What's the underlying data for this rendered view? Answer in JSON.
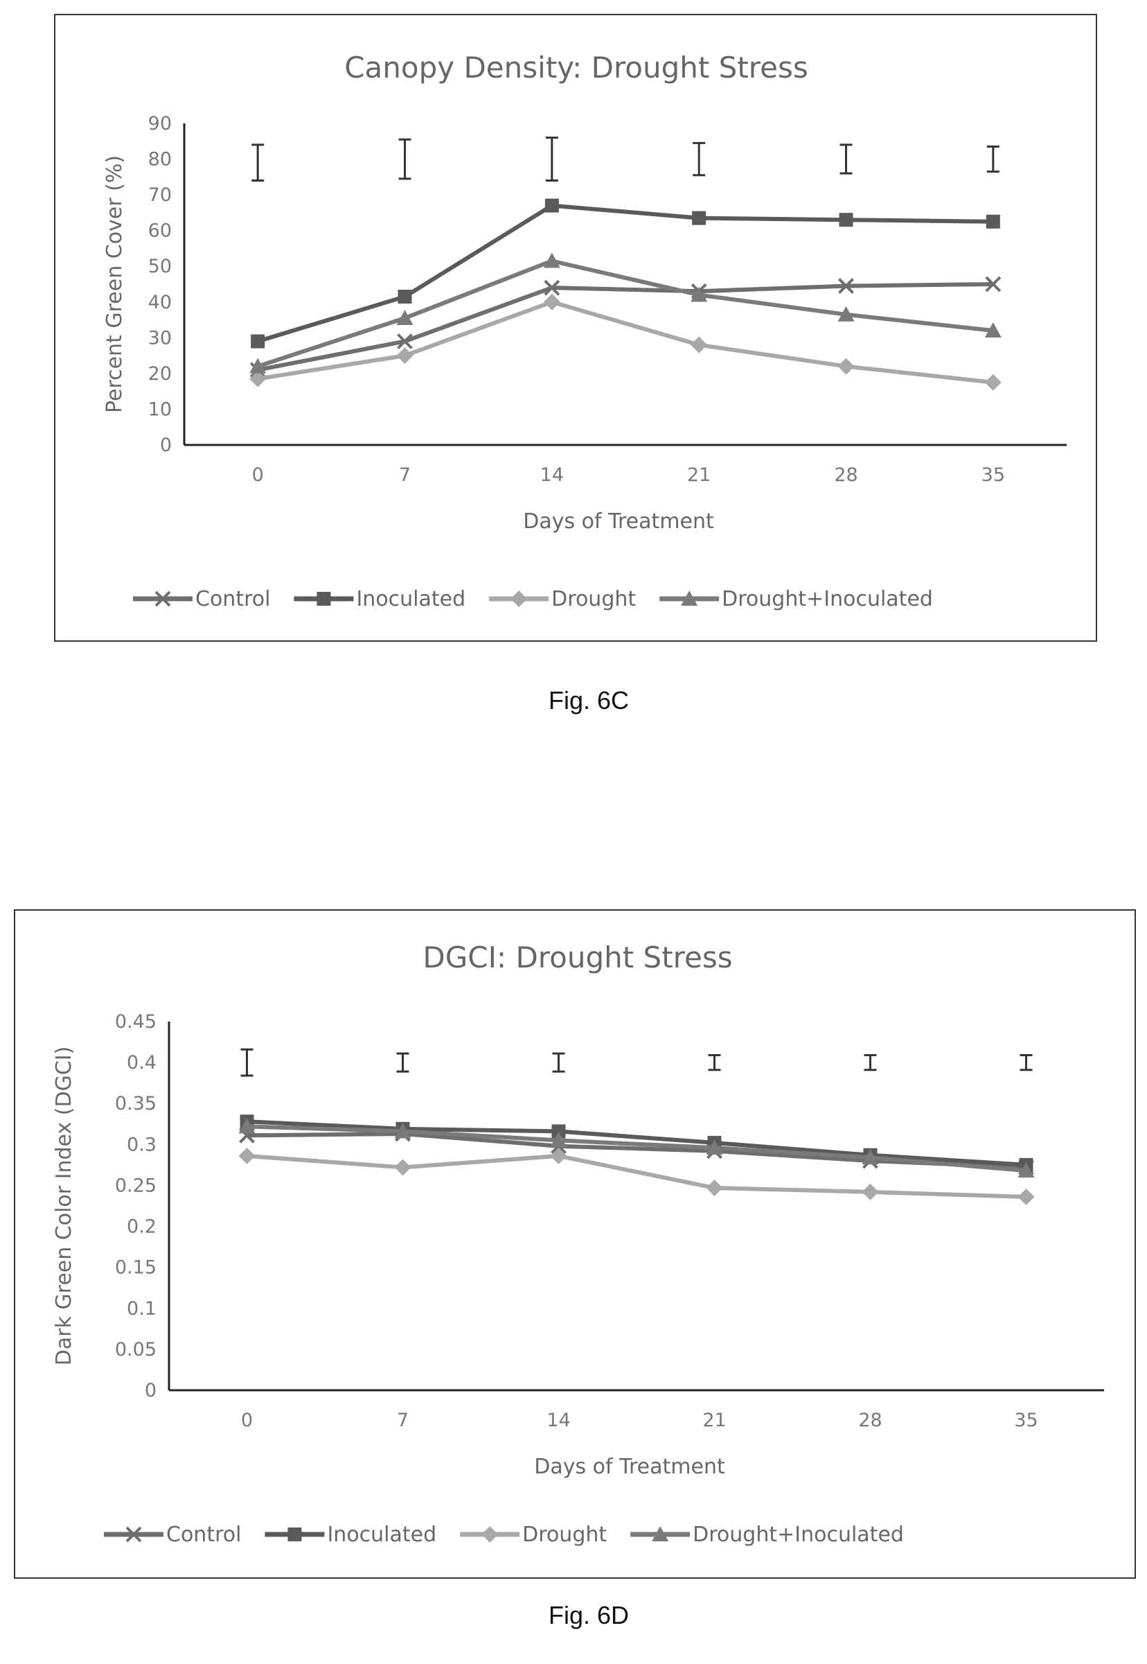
{
  "figures": [
    {
      "caption": "Fig. 6C",
      "chart_data": {
        "type": "line",
        "title": "Canopy Density: Drought Stress",
        "xlabel": "Days of Treatment",
        "ylabel": "Percent Green Cover (%)",
        "categories": [
          "0",
          "7",
          "14",
          "21",
          "28",
          "35"
        ],
        "ylim": [
          0,
          90
        ],
        "yticks": [
          0,
          10,
          20,
          30,
          40,
          50,
          60,
          70,
          80,
          90
        ],
        "grid": false,
        "legend": "bottom",
        "series": [
          {
            "name": "Control",
            "marker": "x",
            "color": "#6e6e6e",
            "values": [
              21,
              29,
              44,
              43,
              44.5,
              45
            ]
          },
          {
            "name": "Inoculated",
            "marker": "square",
            "color": "#5a5a5a",
            "values": [
              29,
              41.5,
              67,
              63.5,
              63,
              62.5
            ]
          },
          {
            "name": "Drought",
            "marker": "diamond",
            "color": "#a8a8a8",
            "values": [
              18.5,
              25,
              40,
              28,
              22,
              17.5
            ]
          },
          {
            "name": "Drought+Inoculated",
            "marker": "triangle",
            "color": "#7a7a7a",
            "values": [
              22,
              35.5,
              51.5,
              42,
              36.5,
              32
            ]
          }
        ],
        "error_bars": {
          "center": [
            79,
            80,
            80,
            80,
            80,
            80
          ],
          "half_range": [
            5,
            5.5,
            6,
            4.5,
            4,
            3.5
          ]
        }
      }
    },
    {
      "caption": "Fig. 6D",
      "chart_data": {
        "type": "line",
        "title": "DGCI: Drought Stress",
        "xlabel": "Days of Treatment",
        "ylabel": "Dark Green Color Index (DGCI)",
        "categories": [
          "0",
          "7",
          "14",
          "21",
          "28",
          "35"
        ],
        "ylim": [
          0,
          0.45
        ],
        "yticks": [
          "0",
          "0.05",
          "0.1",
          "0.15",
          "0.2",
          "0.25",
          "0.3",
          "0.35",
          "0.4",
          "0.45"
        ],
        "grid": false,
        "legend": "bottom",
        "series": [
          {
            "name": "Control",
            "marker": "x",
            "color": "#6e6e6e",
            "values": [
              0.311,
              0.313,
              0.298,
              0.292,
              0.28,
              0.272
            ]
          },
          {
            "name": "Inoculated",
            "marker": "square",
            "color": "#5a5a5a",
            "values": [
              0.328,
              0.319,
              0.316,
              0.302,
              0.287,
              0.275
            ]
          },
          {
            "name": "Drought",
            "marker": "diamond",
            "color": "#a8a8a8",
            "values": [
              0.286,
              0.272,
              0.286,
              0.247,
              0.242,
              0.236
            ]
          },
          {
            "name": "Drought+Inoculated",
            "marker": "triangle",
            "color": "#7a7a7a",
            "values": [
              0.322,
              0.316,
              0.305,
              0.296,
              0.284,
              0.268
            ]
          }
        ],
        "error_bars": {
          "center": [
            0.4,
            0.4,
            0.4,
            0.4,
            0.4,
            0.4
          ],
          "half_range": [
            0.016,
            0.011,
            0.011,
            0.009,
            0.009,
            0.009
          ]
        }
      }
    }
  ]
}
